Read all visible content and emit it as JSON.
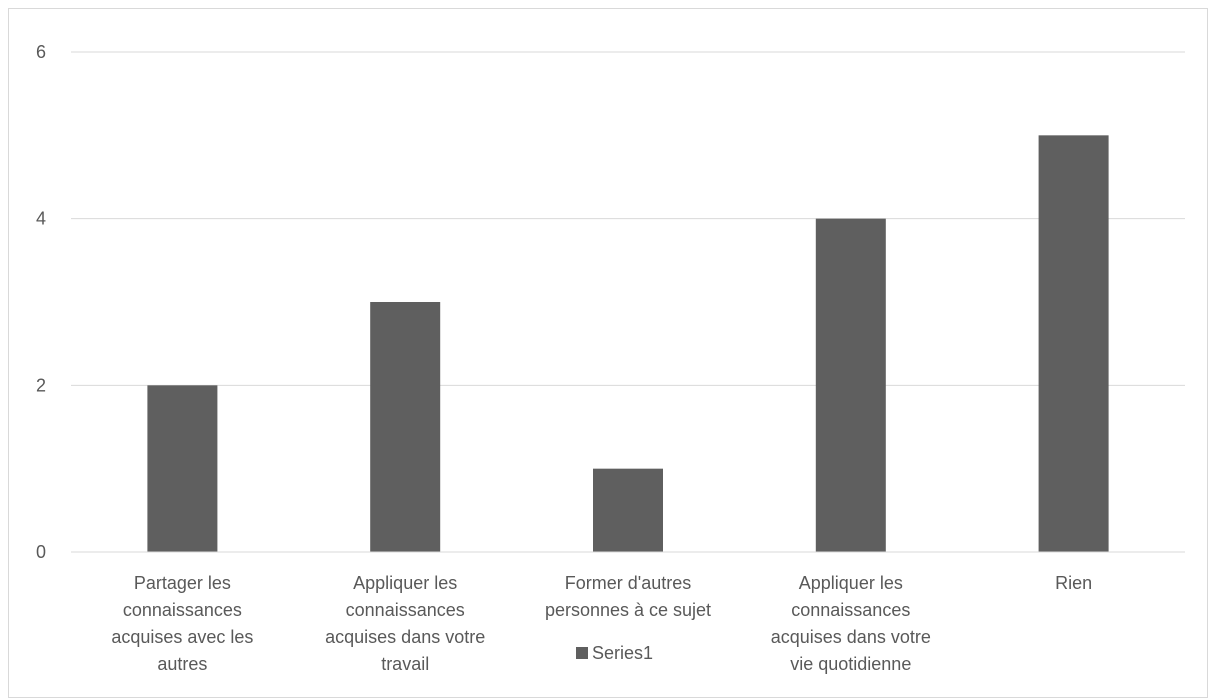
{
  "chart_data": {
    "type": "bar",
    "title": "",
    "xlabel": "",
    "ylabel": "",
    "categories": [
      [
        "Partager les",
        "connaissances",
        "acquises avec les",
        "autres"
      ],
      [
        "Appliquer les",
        "connaissances",
        "acquises dans votre",
        "travail"
      ],
      [
        "Former d'autres",
        "personnes à ce sujet"
      ],
      [
        "Appliquer les",
        "connaissances",
        "acquises dans votre",
        "vie quotidienne"
      ],
      [
        "Rien"
      ]
    ],
    "series": [
      {
        "name": "Series1",
        "values": [
          2,
          3,
          1,
          4,
          5
        ],
        "color": "#5f5f5f"
      }
    ],
    "ylim": [
      0,
      6
    ],
    "yticks": [
      0,
      2,
      4,
      6
    ],
    "grid": true,
    "legend_position": "bottom"
  }
}
